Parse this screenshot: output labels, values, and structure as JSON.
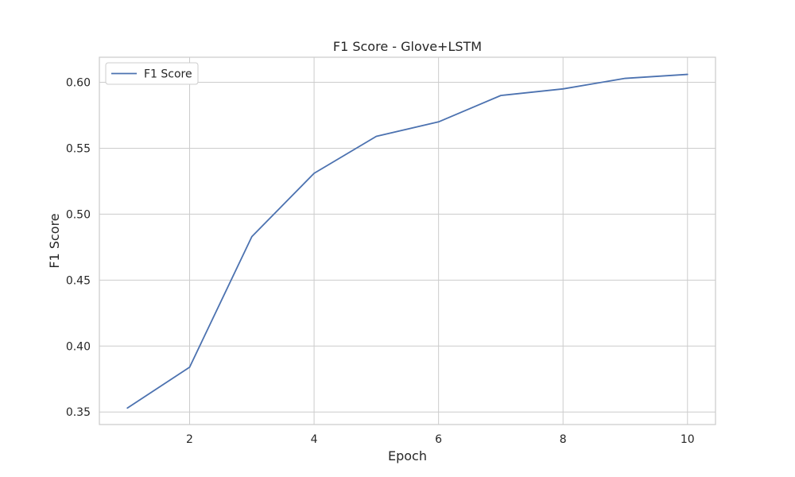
{
  "chart_data": {
    "type": "line",
    "title": "F1 Score - Glove+LSTM",
    "xlabel": "Epoch",
    "ylabel": "F1 Score",
    "xlim": [
      0.55,
      10.45
    ],
    "ylim": [
      0.3405,
      0.619
    ],
    "x_ticks": [
      2,
      4,
      6,
      8,
      10
    ],
    "y_ticks": [
      0.35,
      0.4,
      0.45,
      0.5,
      0.55,
      0.6
    ],
    "y_tick_labels": [
      "0.35",
      "0.40",
      "0.45",
      "0.50",
      "0.55",
      "0.60"
    ],
    "grid": true,
    "legend_position": "top-left",
    "x": [
      1,
      2,
      3,
      4,
      5,
      6,
      7,
      8,
      9,
      10
    ],
    "series": [
      {
        "name": "F1 Score",
        "color": "#4c72b0",
        "values": [
          0.353,
          0.384,
          0.483,
          0.531,
          0.559,
          0.57,
          0.59,
          0.595,
          0.603,
          0.606
        ]
      }
    ]
  }
}
